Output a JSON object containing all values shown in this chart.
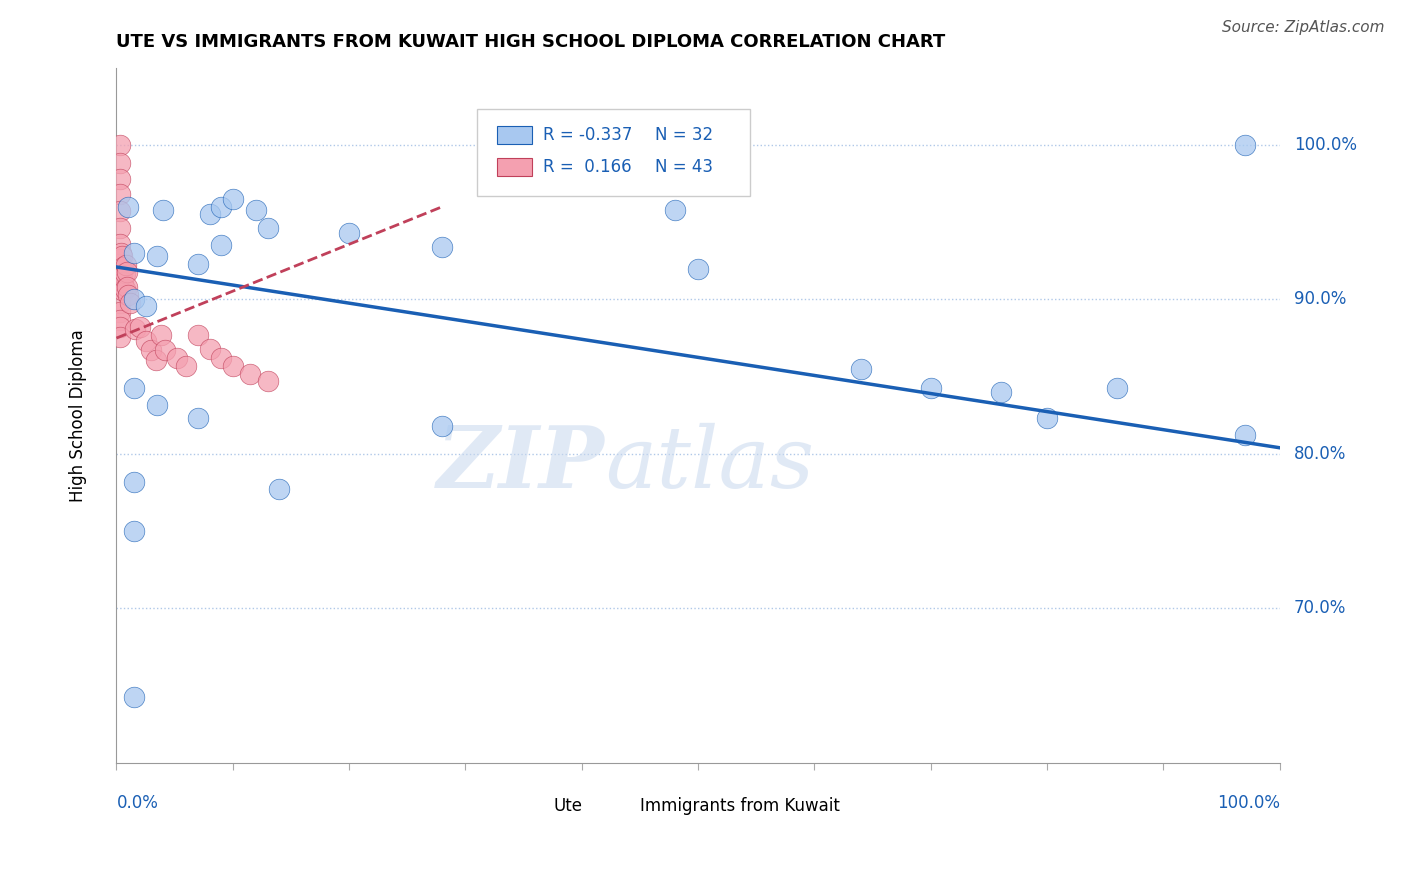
{
  "title": "UTE VS IMMIGRANTS FROM KUWAIT HIGH SCHOOL DIPLOMA CORRELATION CHART",
  "source": "Source: ZipAtlas.com",
  "ylabel": "High School Diploma",
  "xlim": [
    0.0,
    1.0
  ],
  "ylim": [
    0.6,
    1.05
  ],
  "yticks": [
    0.7,
    0.8,
    0.9,
    1.0
  ],
  "ytick_labels": [
    "70.0%",
    "80.0%",
    "90.0%",
    "100.0%"
  ],
  "legend_R_blue": "-0.337",
  "legend_N_blue": "32",
  "legend_R_pink": "0.166",
  "legend_N_pink": "43",
  "blue_color": "#a8c8f0",
  "pink_color": "#f4a0b0",
  "trendline_blue_color": "#1a5fb4",
  "trendline_pink_color": "#c0405a",
  "grid_color": "#b0c8e8",
  "watermark": "ZIPatlas",
  "blue_x": [
    0.01,
    0.04,
    0.08,
    0.09,
    0.1,
    0.12,
    0.015,
    0.035,
    0.07,
    0.09,
    0.015,
    0.025,
    0.13,
    0.2,
    0.28,
    0.48,
    0.5,
    0.64,
    0.7,
    0.76,
    0.8,
    0.86,
    0.07,
    0.015,
    0.015,
    0.015,
    0.035,
    0.14,
    0.28,
    0.97,
    0.015,
    0.97
  ],
  "blue_y": [
    0.96,
    0.958,
    0.955,
    0.96,
    0.965,
    0.958,
    0.93,
    0.928,
    0.923,
    0.935,
    0.9,
    0.896,
    0.946,
    0.943,
    0.934,
    0.958,
    0.92,
    0.855,
    0.843,
    0.84,
    0.823,
    0.843,
    0.823,
    0.843,
    0.782,
    0.75,
    0.832,
    0.777,
    0.818,
    1.0,
    0.643,
    0.812
  ],
  "pink_x": [
    0.003,
    0.003,
    0.003,
    0.003,
    0.003,
    0.003,
    0.003,
    0.003,
    0.003,
    0.003,
    0.003,
    0.003,
    0.003,
    0.003,
    0.003,
    0.004,
    0.005,
    0.005,
    0.005,
    0.006,
    0.006,
    0.007,
    0.007,
    0.008,
    0.009,
    0.009,
    0.01,
    0.012,
    0.016,
    0.02,
    0.025,
    0.03,
    0.034,
    0.038,
    0.042,
    0.052,
    0.06,
    0.07,
    0.08,
    0.09,
    0.1,
    0.115,
    0.13
  ],
  "pink_y": [
    1.0,
    0.988,
    0.978,
    0.968,
    0.957,
    0.946,
    0.936,
    0.926,
    0.916,
    0.908,
    0.898,
    0.892,
    0.887,
    0.882,
    0.876,
    0.93,
    0.928,
    0.916,
    0.906,
    0.921,
    0.911,
    0.917,
    0.907,
    0.922,
    0.918,
    0.908,
    0.903,
    0.898,
    0.881,
    0.882,
    0.873,
    0.867,
    0.861,
    0.877,
    0.867,
    0.862,
    0.857,
    0.877,
    0.868,
    0.862,
    0.857,
    0.852,
    0.847
  ],
  "trendline_blue_x0": 0.0,
  "trendline_blue_x1": 1.0,
  "trendline_blue_y0": 0.921,
  "trendline_blue_y1": 0.804,
  "trendline_pink_x0": 0.0,
  "trendline_pink_x1": 0.28,
  "trendline_pink_y0": 0.875,
  "trendline_pink_y1": 0.96
}
